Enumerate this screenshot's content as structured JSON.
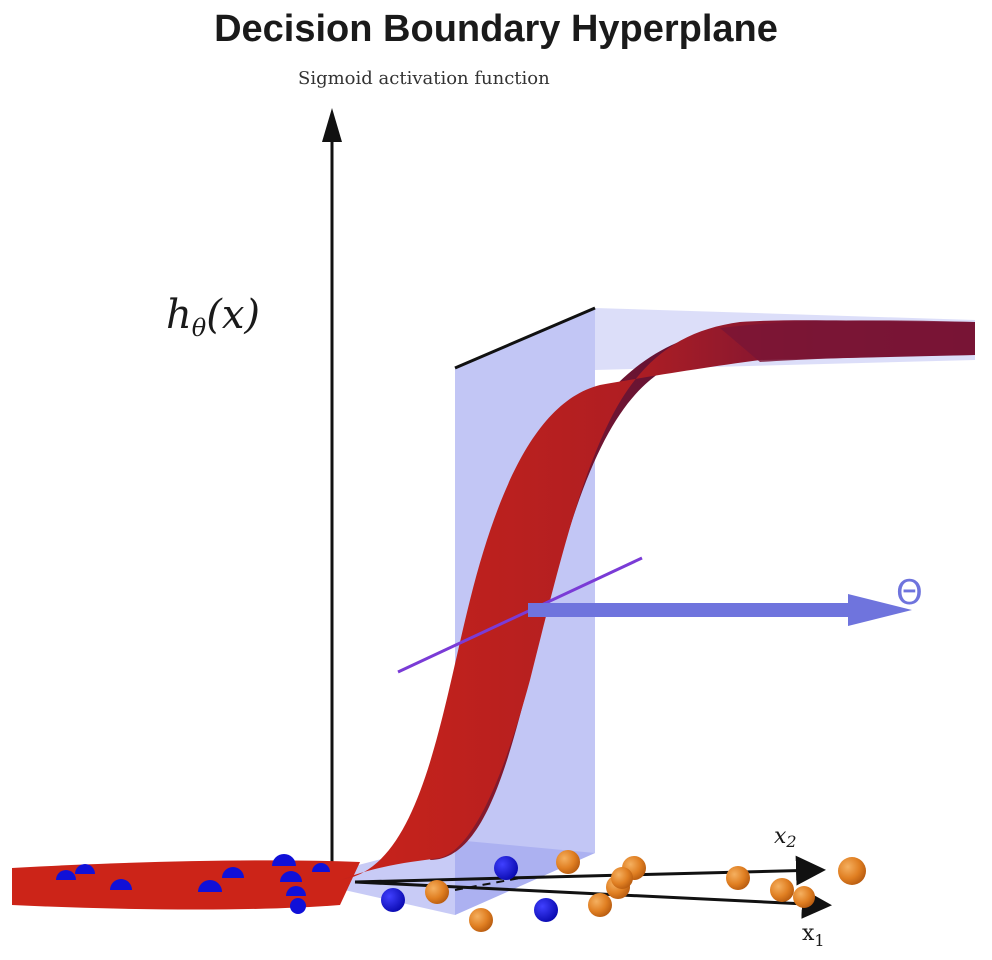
{
  "title": "Decision Boundary Hyperplane",
  "subtitle": "Sigmoid activation function",
  "labels": {
    "h": "h",
    "h_sub": "θ",
    "h_arg": "(x)",
    "x2": "x",
    "x2_sub": "2",
    "x1": "x",
    "x1_sub": "1",
    "theta": "Θ"
  },
  "colors": {
    "surface_front": "#c8231a",
    "surface_back": "#6e1238",
    "plane": "#9aa0ee",
    "theta_arrow": "#6f74dd",
    "normal_line": "#7a3bd6",
    "class_blue": "#1010d8",
    "class_orange": "#e8882a"
  },
  "icons": {
    "theta_vector": "arrow-right-icon",
    "vertical_axis": "arrow-up-icon"
  }
}
